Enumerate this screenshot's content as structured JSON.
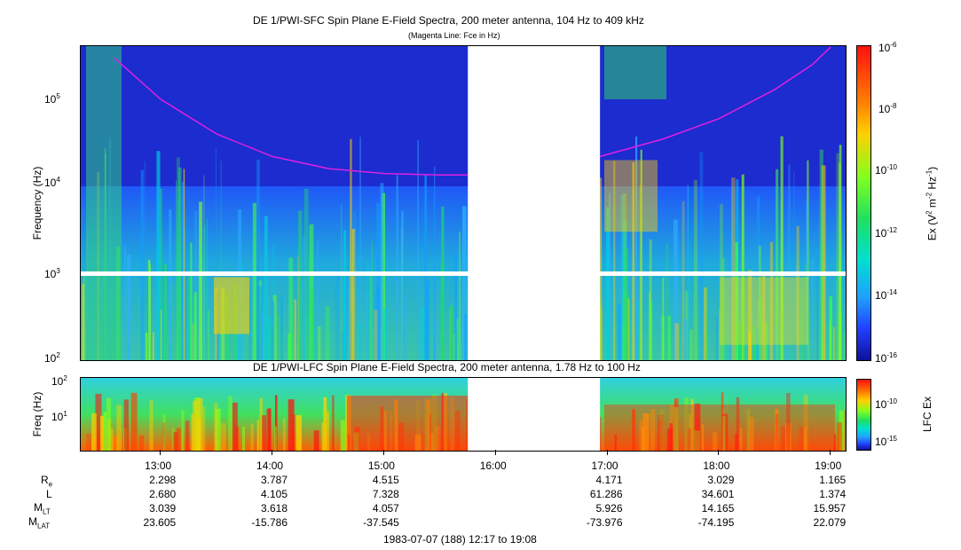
{
  "chart_data": [
    {
      "type": "heatmap",
      "title": "DE 1/PWI-SFC  Spin Plane E-Field Spectra, 200 meter antenna, 104 Hz to 409 kHz",
      "subtitle": "(Magenta Line: Fce in Hz)",
      "ylabel": "Frequency (Hz)",
      "yscale": "log",
      "ylim": [
        100,
        409000
      ],
      "yticks": [
        "10^2",
        "10^3",
        "10^4",
        "10^5"
      ],
      "colorbar_label": "Ex (V^2 m^-2 Hz^-1)",
      "colorbar_ticks": [
        "10^-6",
        "10^-8",
        "10^-10",
        "10^-12",
        "10^-14",
        "10^-16"
      ],
      "data_gap": [
        "15:45",
        "16:56"
      ],
      "fce_line_color": "#e020e0",
      "fce_line": {
        "x": [
          "12:35",
          "13:00",
          "13:30",
          "14:00",
          "14:30",
          "15:00",
          "15:30",
          "15:45",
          "16:56",
          "17:30",
          "18:00",
          "18:30",
          "18:50",
          "19:00"
        ],
        "y": [
          300000,
          100000,
          40000,
          22000,
          16000,
          14000,
          13500,
          13500,
          22000,
          35000,
          60000,
          130000,
          250000,
          400000
        ]
      }
    },
    {
      "type": "heatmap",
      "title": "DE 1/PWI-LFC  Spin Plane E-Field Spectra, 200 meter antenna, 1.78 Hz to 100 Hz",
      "ylabel": "Freq (Hz)",
      "yscale": "log",
      "ylim": [
        1.78,
        100
      ],
      "yticks": [
        "10^2",
        "10^1"
      ],
      "colorbar_label": "LFC Ex",
      "colorbar_ticks": [
        "10^-10",
        "10^-15"
      ],
      "data_gap": [
        "15:45",
        "16:56"
      ]
    }
  ],
  "xaxis": {
    "ticks": [
      "13:00",
      "14:00",
      "15:00",
      "16:00",
      "17:00",
      "18:00",
      "19:00"
    ],
    "range": [
      "12:17",
      "19:08"
    ]
  },
  "ephemeris": {
    "labels": {
      "re": "R",
      "re_sub": "e",
      "l": "L",
      "mlt": "M",
      "mlt_sub": "LT",
      "mlat": "M",
      "mlat_sub": "LAT"
    },
    "re": [
      "2.298",
      "3.787",
      "4.515",
      "",
      "4.171",
      "3.029",
      "1.165"
    ],
    "l": [
      "2.680",
      "4.105",
      "7.328",
      "",
      "61.286",
      "34.601",
      "1.374"
    ],
    "mlt": [
      "3.039",
      "3.618",
      "4.057",
      "",
      "5.926",
      "14.165",
      "15.957"
    ],
    "mlat": [
      "23.605",
      "-15.786",
      "-37.545",
      "",
      "-73.976",
      "-74.195",
      "22.079"
    ]
  },
  "footer": "1983-07-07 (188) 12:17 to 19:08"
}
